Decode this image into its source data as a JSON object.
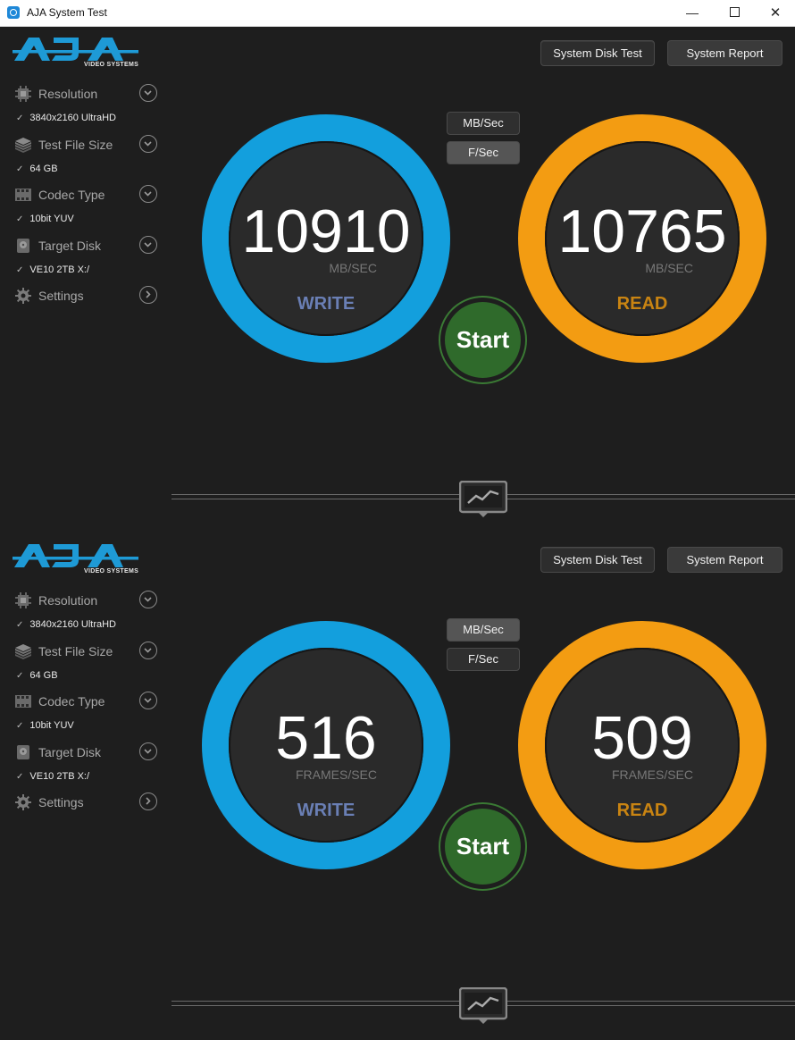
{
  "window": {
    "title": "AJA System Test",
    "controls": {
      "minimize": "—",
      "close": "✕"
    }
  },
  "logo": {
    "subtitle": "VIDEO SYSTEMS",
    "brand_color": "#1e9ad6"
  },
  "panels": [
    {
      "buttons": {
        "system_disk_test": "System Disk Test",
        "system_report": "System Report"
      },
      "menu": [
        {
          "label": "Resolution",
          "value": "3840x2160 UltraHD",
          "icon": "resolution-chip-icon",
          "chevron": "down"
        },
        {
          "label": "Test File Size",
          "value": "64 GB",
          "icon": "stack-layers-icon",
          "chevron": "down"
        },
        {
          "label": "Codec Type",
          "value": "10bit YUV",
          "icon": "film-codec-icon",
          "chevron": "down"
        },
        {
          "label": "Target Disk",
          "value": "VE10 2TB X:/",
          "icon": "disk-icon",
          "chevron": "down"
        },
        {
          "label": "Settings",
          "icon": "gear-icon",
          "chevron": "right"
        }
      ],
      "unit_toggle": {
        "mb": "MB/Sec",
        "fps": "F/Sec",
        "selected": "MB/Sec"
      },
      "write": {
        "value": "10910",
        "unit": "MB/SEC",
        "label": "WRITE",
        "color": "#139fdd"
      },
      "read": {
        "value": "10765",
        "unit": "MB/SEC",
        "label": "READ",
        "color": "#f39c12"
      },
      "start": "Start"
    },
    {
      "buttons": {
        "system_disk_test": "System Disk Test",
        "system_report": "System Report"
      },
      "menu": [
        {
          "label": "Resolution",
          "value": "3840x2160 UltraHD",
          "icon": "resolution-chip-icon",
          "chevron": "down"
        },
        {
          "label": "Test File Size",
          "value": "64 GB",
          "icon": "stack-layers-icon",
          "chevron": "down"
        },
        {
          "label": "Codec Type",
          "value": "10bit YUV",
          "icon": "film-codec-icon",
          "chevron": "down"
        },
        {
          "label": "Target Disk",
          "value": "VE10 2TB X:/",
          "icon": "disk-icon",
          "chevron": "down"
        },
        {
          "label": "Settings",
          "icon": "gear-icon",
          "chevron": "right"
        }
      ],
      "unit_toggle": {
        "mb": "MB/Sec",
        "fps": "F/Sec",
        "selected": "F/Sec"
      },
      "write": {
        "value": "516",
        "unit": "FRAMES/SEC",
        "label": "WRITE",
        "color": "#139fdd"
      },
      "read": {
        "value": "509",
        "unit": "FRAMES/SEC",
        "label": "READ",
        "color": "#f39c12"
      },
      "start": "Start"
    }
  ]
}
